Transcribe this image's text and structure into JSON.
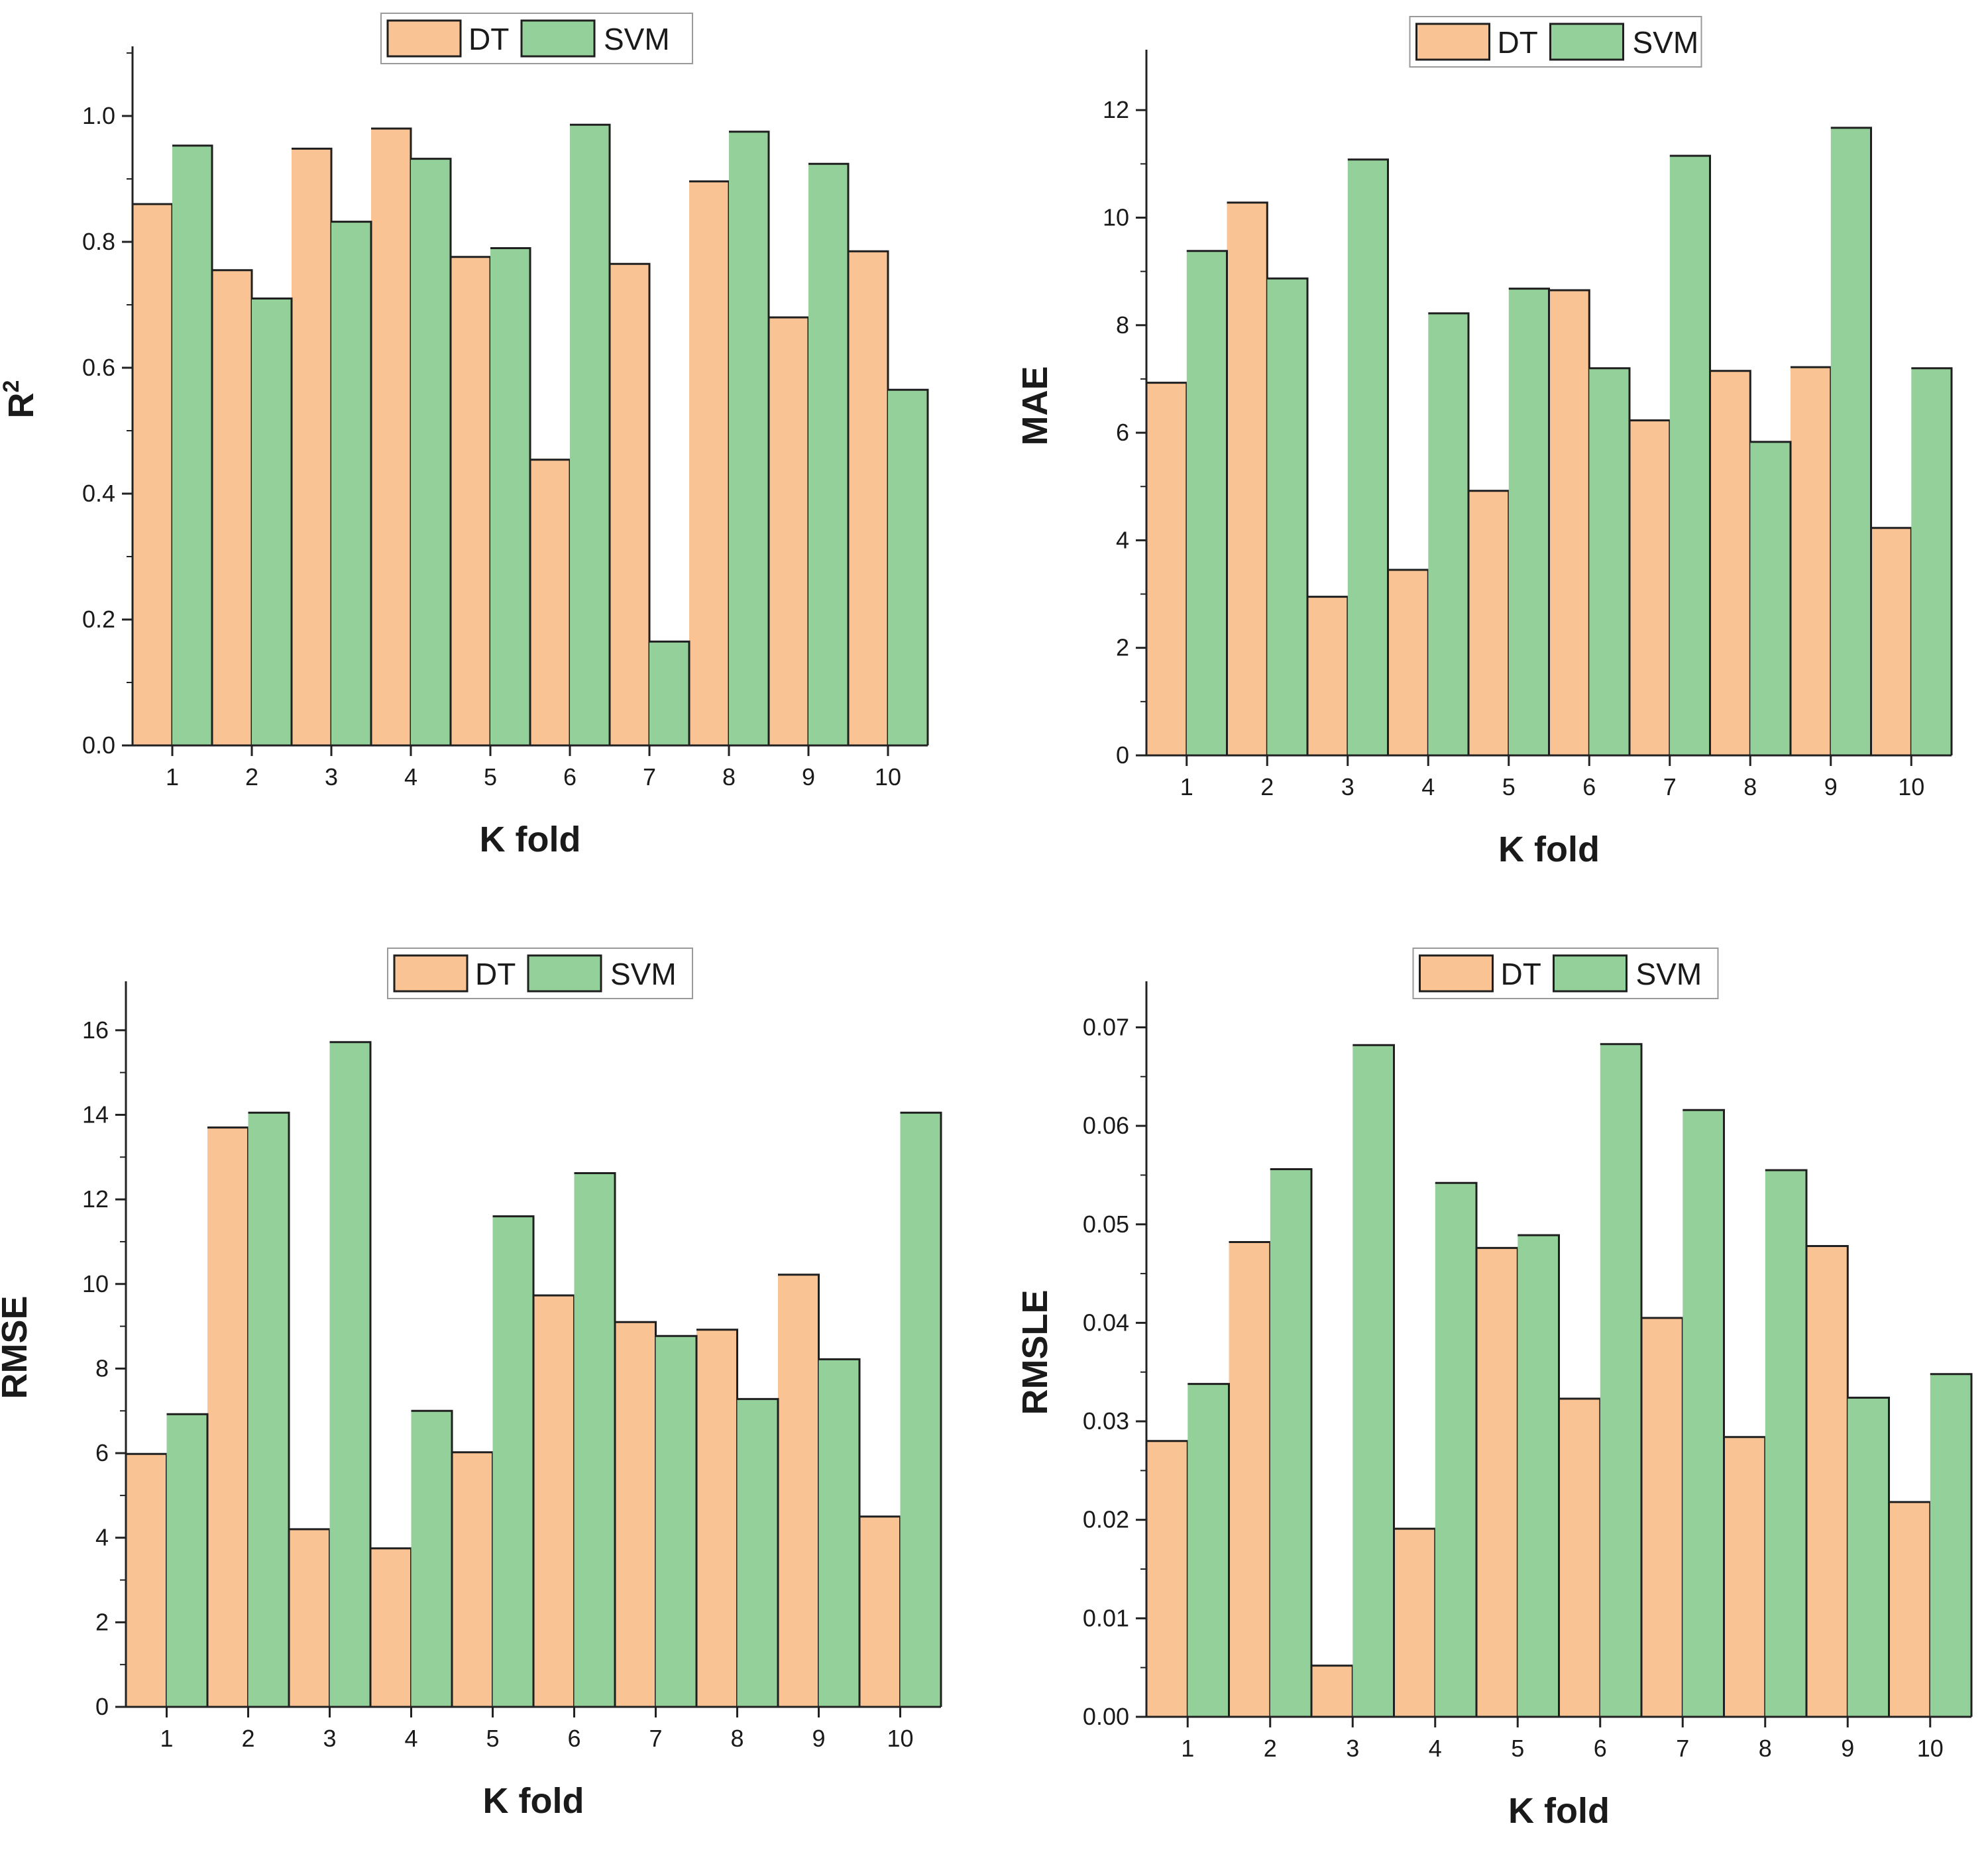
{
  "figure": {
    "legend_names": [
      "DT",
      "SVM"
    ],
    "colors": {
      "DT": "#f9c394",
      "SVM": "#93d09a",
      "bar_edge": "#1f1f1f",
      "axis": "#222222"
    }
  },
  "chart_data": [
    {
      "type": "bar",
      "xlabel": "K fold",
      "ylabel": "R",
      "ylabel_sup": "2",
      "ylim": [
        0,
        1.1
      ],
      "yticks": [
        "0.0",
        "0.2",
        "0.4",
        "0.6",
        "0.8",
        "1.0"
      ],
      "legend": "top-center",
      "categories": [
        "1",
        "2",
        "3",
        "4",
        "5",
        "6",
        "7",
        "8",
        "9",
        "10"
      ],
      "series": [
        {
          "name": "DT",
          "values": [
            0.86,
            0.755,
            0.948,
            0.98,
            0.776,
            0.454,
            0.765,
            0.896,
            0.68,
            0.785
          ]
        },
        {
          "name": "SVM",
          "values": [
            0.953,
            0.71,
            0.832,
            0.932,
            0.79,
            0.986,
            0.165,
            0.975,
            0.924,
            0.565
          ]
        }
      ]
    },
    {
      "type": "bar",
      "xlabel": "K fold",
      "ylabel": "MAE",
      "ylim": [
        0,
        13
      ],
      "yticks": [
        "0",
        "2",
        "4",
        "6",
        "8",
        "10",
        "12"
      ],
      "legend": "top-center",
      "categories": [
        "1",
        "2",
        "3",
        "4",
        "5",
        "6",
        "7",
        "8",
        "9",
        "10"
      ],
      "series": [
        {
          "name": "DT",
          "values": [
            6.93,
            10.28,
            2.95,
            3.45,
            4.92,
            8.65,
            6.23,
            7.15,
            7.22,
            4.23
          ]
        },
        {
          "name": "SVM",
          "values": [
            9.38,
            8.87,
            11.08,
            8.22,
            8.68,
            7.2,
            11.15,
            5.83,
            11.67,
            7.2
          ]
        }
      ]
    },
    {
      "type": "bar",
      "xlabel": "K fold",
      "ylabel": "RMSE",
      "ylim": [
        0,
        17
      ],
      "yticks": [
        "0",
        "2",
        "4",
        "6",
        "8",
        "10",
        "12",
        "14",
        "16"
      ],
      "legend": "top-center",
      "categories": [
        "1",
        "2",
        "3",
        "4",
        "5",
        "6",
        "7",
        "8",
        "9",
        "10"
      ],
      "series": [
        {
          "name": "DT",
          "values": [
            5.98,
            13.7,
            4.2,
            3.75,
            6.02,
            9.73,
            9.1,
            8.92,
            10.22,
            4.5
          ]
        },
        {
          "name": "SVM",
          "values": [
            6.92,
            14.05,
            15.72,
            7.0,
            11.6,
            12.62,
            8.77,
            7.28,
            8.22,
            14.05
          ]
        }
      ]
    },
    {
      "type": "bar",
      "xlabel": "K fold",
      "ylabel": "RMSLE",
      "ylim": [
        0,
        0.074
      ],
      "yticks": [
        "0.00",
        "0.01",
        "0.02",
        "0.03",
        "0.04",
        "0.05",
        "0.06",
        "0.07"
      ],
      "legend": "top-center",
      "categories": [
        "1",
        "2",
        "3",
        "4",
        "5",
        "6",
        "7",
        "8",
        "9",
        "10"
      ],
      "series": [
        {
          "name": "DT",
          "values": [
            0.028,
            0.0482,
            0.0052,
            0.0191,
            0.0476,
            0.0323,
            0.0405,
            0.0284,
            0.0478,
            0.0218
          ]
        },
        {
          "name": "SVM",
          "values": [
            0.0338,
            0.0556,
            0.0682,
            0.0542,
            0.0489,
            0.0683,
            0.0616,
            0.0555,
            0.0324,
            0.0348
          ]
        }
      ]
    }
  ]
}
